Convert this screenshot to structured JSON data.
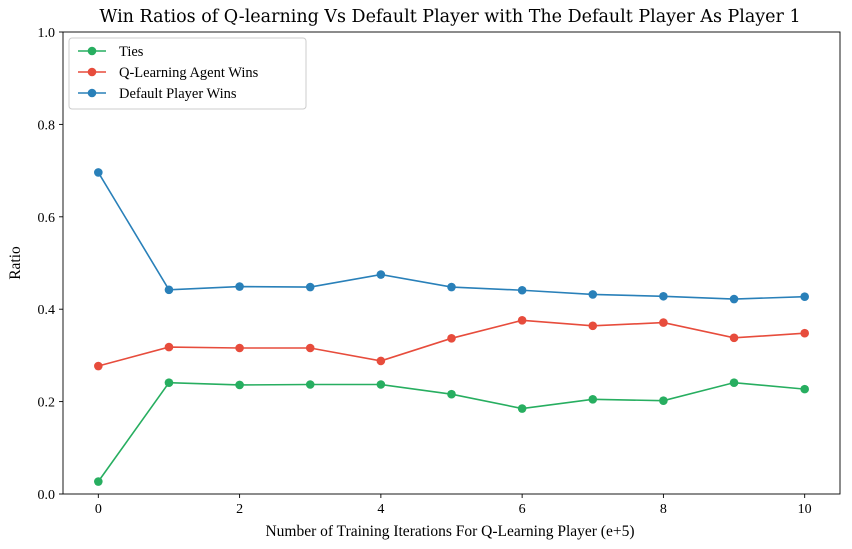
{
  "chart_data": {
    "type": "line",
    "title": "Win Ratios of Q-learning Vs Default Player with The Default Player As Player 1",
    "xlabel": "Number of Training Iterations For Q-Learning Player (e+5)",
    "ylabel": "Ratio",
    "x": [
      0,
      1,
      2,
      3,
      4,
      5,
      6,
      7,
      8,
      9,
      10
    ],
    "xlim": [
      -0.5,
      10.5
    ],
    "ylim": [
      0.0,
      1.0
    ],
    "xticks": [
      "0",
      "2",
      "4",
      "6",
      "8",
      "10"
    ],
    "yticks": [
      "0.0",
      "0.2",
      "0.4",
      "0.6",
      "0.8",
      "1.0"
    ],
    "grid": false,
    "legend_position": "top-left",
    "series": [
      {
        "name": "Ties",
        "color": "#27ae60",
        "values": [
          0.027,
          0.241,
          0.236,
          0.237,
          0.237,
          0.216,
          0.185,
          0.205,
          0.202,
          0.241,
          0.227
        ]
      },
      {
        "name": "Q-Learning Agent Wins",
        "color": "#e74c3c",
        "values": [
          0.277,
          0.318,
          0.316,
          0.316,
          0.288,
          0.337,
          0.376,
          0.364,
          0.371,
          0.338,
          0.348
        ]
      },
      {
        "name": "Default Player Wins",
        "color": "#2980b9",
        "values": [
          0.696,
          0.442,
          0.449,
          0.448,
          0.475,
          0.448,
          0.441,
          0.432,
          0.428,
          0.422,
          0.427
        ]
      }
    ]
  }
}
